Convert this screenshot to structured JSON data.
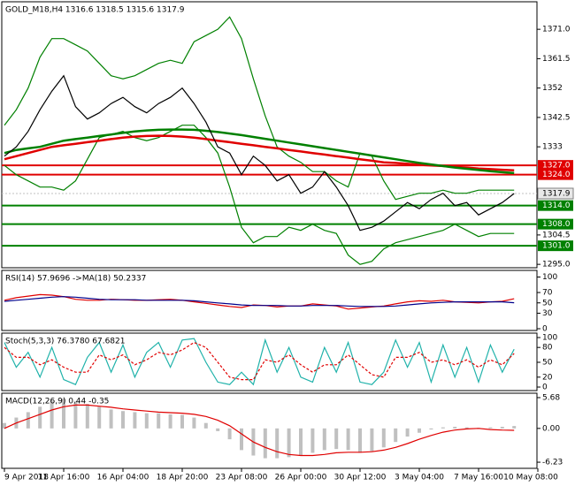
{
  "chart_data": [
    {
      "type": "line",
      "title": "GOLD_M18,H4  1316.6 1318.5 1315.6 1317.9",
      "ylim": [
        1293.9,
        1379.9
      ],
      "yticks": [
        {
          "value": 1371,
          "label": "1371.0"
        },
        {
          "value": 1361.5,
          "label": "1361.5"
        },
        1352,
        1342.5,
        1333,
        1304.5,
        {
          "value": 1295,
          "label": "1295.0"
        }
      ],
      "levels": [
        {
          "value": 1327,
          "label": "1327.0",
          "color": "#e00000"
        },
        {
          "value": 1324,
          "label": "1324.0",
          "color": "#e00000"
        },
        {
          "value": 1314,
          "label": "1314.0",
          "color": "#008000"
        },
        {
          "value": 1308,
          "label": "1308.0",
          "color": "#008000"
        },
        {
          "value": 1301,
          "label": "1301.0",
          "color": "#008000"
        }
      ],
      "last": {
        "value": 1317.9,
        "label": "1317.9"
      },
      "series": [
        {
          "color": "#008000",
          "values": [
            1340,
            1345,
            1352,
            1362,
            1368,
            1368,
            1366,
            1364,
            1360,
            1356,
            1355,
            1356,
            1358,
            1360,
            1361,
            1360,
            1367,
            1369,
            1371,
            1375,
            1368,
            1355,
            1343,
            1333,
            1330,
            1328,
            1325,
            1325,
            1322,
            1320,
            1331,
            1330,
            1322,
            1316,
            1317,
            1318,
            1318,
            1319,
            1318,
            1318,
            1319,
            1319,
            1319,
            1319,
            null,
            null
          ]
        },
        {
          "color": "#008000",
          "values": [
            1327,
            1324,
            1322,
            1320,
            1320,
            1319,
            1322,
            1329,
            1336,
            1337,
            1338,
            1336,
            1335,
            1336,
            1338,
            1340,
            1340,
            1336,
            1331,
            1320,
            1307,
            1302,
            1304,
            1304,
            1307,
            1306,
            1308,
            1306,
            1305,
            1298,
            1295,
            1296,
            1300,
            1302,
            1303,
            1304,
            1305,
            1306,
            1308,
            1306,
            1304,
            1305,
            1305,
            1305,
            null,
            null
          ]
        },
        {
          "color": "#e00000",
          "thick": true,
          "values": [
            1329,
            1330,
            1331,
            1332,
            1333,
            1333.5,
            1334,
            1334.5,
            1335,
            1335.5,
            1336,
            1336.3,
            1336.5,
            1336.6,
            1336.5,
            1336.3,
            1336,
            1335.5,
            1335,
            1334.5,
            1334,
            1333.5,
            1333,
            1332.5,
            1332,
            1331.5,
            1331,
            1330.5,
            1330,
            1329.5,
            1329,
            1328.5,
            1328,
            1327.8,
            1327.5,
            1327.2,
            1327,
            1326.8,
            1326.5,
            1326.3,
            1326,
            1325.8,
            1325.6,
            1325.4,
            null,
            null
          ]
        },
        {
          "color": "#008000",
          "thick": true,
          "values": [
            1331,
            1332,
            1332.5,
            1333,
            1334,
            1335,
            1335.5,
            1336,
            1336.5,
            1337,
            1337.5,
            1338,
            1338.3,
            1338.5,
            1338.6,
            1338.6,
            1338.5,
            1338.2,
            1337.8,
            1337.3,
            1336.8,
            1336.2,
            1335.6,
            1335,
            1334.4,
            1333.8,
            1333.2,
            1332.6,
            1332,
            1331.4,
            1330.8,
            1330.2,
            1329.6,
            1329,
            1328.4,
            1327.8,
            1327.3,
            1326.8,
            1326.3,
            1325.9,
            1325.5,
            1325.1,
            1324.8,
            1324.5,
            null,
            null
          ]
        },
        {
          "color": "#000000",
          "values": [
            1330,
            1333,
            1338,
            1345,
            1351,
            1356,
            1346,
            1342,
            1344,
            1347,
            1349,
            1346,
            1344,
            1347,
            1349,
            1352,
            1347,
            1341,
            1333,
            1331,
            1324,
            1330,
            1327,
            1322,
            1324,
            1318,
            1320,
            1325,
            1320,
            1314,
            1306,
            1307,
            1309,
            1312,
            1315,
            1313,
            1316,
            1318,
            1314,
            1315,
            1311,
            1313,
            1315,
            1317.9,
            null,
            null
          ]
        }
      ]
    },
    {
      "type": "line",
      "title": "RSI(14) 57.9696  ->MA(18) 50.2337",
      "ylim": [
        -3.4,
        112.8
      ],
      "yticks": [
        100,
        70,
        50,
        30,
        0
      ],
      "series": [
        {
          "color": "#e00000",
          "values": [
            55,
            60,
            63,
            66,
            65,
            62,
            57,
            55,
            55,
            57,
            56,
            55,
            55,
            56,
            57,
            55,
            52,
            49,
            46,
            43,
            41,
            46,
            45,
            42,
            44,
            44,
            48,
            46,
            44,
            38,
            40,
            42,
            44,
            48,
            52,
            54,
            53,
            55,
            52,
            51,
            50,
            52,
            53,
            57.9696,
            null,
            null
          ]
        },
        {
          "color": "#00008b",
          "values": [
            53,
            55,
            57,
            59,
            61,
            62,
            61,
            59,
            57,
            56,
            56,
            56,
            55,
            55,
            55,
            55,
            54,
            52,
            50,
            48,
            46,
            45,
            45,
            45,
            44,
            44,
            45,
            45,
            45,
            44,
            43,
            43,
            43,
            44,
            46,
            48,
            50,
            51,
            52,
            52,
            52,
            52,
            52,
            50.2337,
            null,
            null
          ]
        }
      ]
    },
    {
      "type": "line",
      "title": "Stoch(5,3,3) 76.3780 67.6821",
      "ylim": [
        -7.1,
        108.9
      ],
      "yticks": [
        100,
        80,
        50,
        20,
        0
      ],
      "series": [
        {
          "color": "#20b2aa",
          "values": [
            90,
            40,
            70,
            20,
            80,
            15,
            5,
            60,
            90,
            30,
            85,
            20,
            70,
            90,
            40,
            95,
            98,
            50,
            10,
            5,
            30,
            5,
            95,
            30,
            80,
            20,
            10,
            80,
            30,
            90,
            10,
            5,
            30,
            95,
            40,
            90,
            10,
            85,
            20,
            80,
            10,
            85,
            30,
            76.378,
            null,
            null
          ]
        },
        {
          "color": "#e00000",
          "dash": true,
          "values": [
            80,
            60,
            60,
            45,
            55,
            40,
            30,
            30,
            65,
            55,
            65,
            45,
            55,
            70,
            65,
            75,
            90,
            80,
            50,
            20,
            15,
            15,
            55,
            50,
            65,
            45,
            30,
            45,
            45,
            65,
            45,
            25,
            20,
            60,
            60,
            70,
            50,
            55,
            45,
            55,
            40,
            55,
            45,
            67.6821,
            null,
            null
          ]
        }
      ]
    },
    {
      "type": "bar",
      "title": "MACD(12,26,9) 0.44 -0.35",
      "ylim": [
        -7.36,
        6.49
      ],
      "yticks": [
        5.68,
        {
          "value": 0,
          "label": "0.00"
        },
        -6.23
      ],
      "categories": [
        "9 Apr 2018",
        null,
        null,
        null,
        null,
        "11 Apr 16:00",
        null,
        null,
        null,
        null,
        "16 Apr 04:00",
        null,
        null,
        null,
        null,
        "18 Apr 20:00",
        null,
        null,
        null,
        null,
        "23 Apr 08:00",
        null,
        null,
        null,
        null,
        "26 Apr 00:00",
        null,
        null,
        null,
        null,
        "30 Apr 12:00",
        null,
        null,
        null,
        null,
        "3 May 04:00",
        null,
        null,
        null,
        null,
        "7 May 16:00",
        null,
        null,
        null,
        null,
        "10 May 08:00"
      ],
      "series": [
        {
          "color": "#c0c0c0",
          "type": "bar",
          "values": [
            1,
            2,
            3,
            4,
            5,
            5.5,
            5,
            4.5,
            4,
            3.5,
            3.2,
            3,
            2.8,
            2.8,
            2.6,
            2.5,
            2,
            1,
            -0.5,
            -2,
            -4,
            -5,
            -5.5,
            -5.5,
            -5.3,
            -5,
            -4.5,
            -4,
            -3.8,
            -4,
            -4.5,
            -4.2,
            -3.5,
            -2.5,
            -1.5,
            -0.8,
            -0.2,
            0.2,
            0.3,
            0.2,
            0.1,
            0.2,
            0.3,
            0.44,
            null,
            null
          ]
        },
        {
          "color": "#e00000",
          "type": "line",
          "values": [
            0,
            1,
            1.8,
            2.6,
            3.4,
            4,
            4.3,
            4.3,
            4.1,
            3.9,
            3.6,
            3.4,
            3.2,
            3,
            2.9,
            2.8,
            2.6,
            2.2,
            1.5,
            0.5,
            -1,
            -2.5,
            -3.5,
            -4.3,
            -4.8,
            -5,
            -5,
            -4.8,
            -4.5,
            -4.4,
            -4.4,
            -4.3,
            -4,
            -3.5,
            -2.8,
            -2,
            -1.3,
            -0.7,
            -0.3,
            -0.1,
            0,
            -0.2,
            -0.3,
            -0.35,
            null,
            null
          ]
        }
      ]
    }
  ]
}
